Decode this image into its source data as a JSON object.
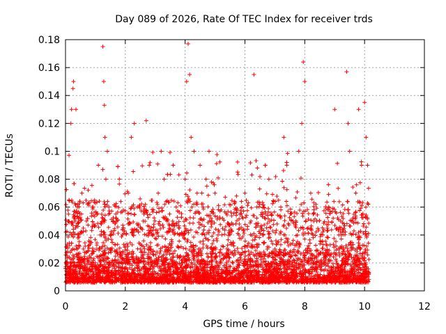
{
  "chart_data": {
    "type": "scatter",
    "title": "Day 089 of 2026, Rate Of TEC Index for receiver trds",
    "xlabel": "GPS time / hours",
    "ylabel": "ROTI / TECUs",
    "xlim": [
      0,
      12
    ],
    "ylim": [
      0,
      0.18
    ],
    "x_ticks": [
      0,
      2,
      4,
      6,
      8,
      10,
      12
    ],
    "x_tick_labels": [
      "0",
      "2",
      "4",
      "6",
      "8",
      "10",
      "12"
    ],
    "y_ticks": [
      0,
      0.02,
      0.04,
      0.06,
      0.08,
      0.1,
      0.12,
      0.14,
      0.16,
      0.18
    ],
    "y_tick_labels": [
      "0",
      "0.02",
      "0.04",
      "0.06",
      "0.08",
      "0.1",
      "0.12",
      "0.14",
      "0.16",
      "0.18"
    ],
    "grid": true,
    "legend": "none",
    "marker": "+",
    "color": "#ff0000",
    "x_data_range": [
      0,
      10.15
    ],
    "series": [
      {
        "x": [
          0.05,
          0.1,
          0.15,
          0.18,
          0.2,
          0.22,
          0.25,
          0.27,
          0.3,
          0.32,
          0.35,
          0.38,
          0.4,
          0.42,
          0.45,
          0.5,
          0.55,
          0.6,
          0.7,
          0.8,
          0.9,
          1.0,
          1.1,
          1.2,
          1.25,
          1.28,
          1.3,
          1.32,
          1.35,
          1.4,
          1.45,
          1.5,
          1.6,
          1.7,
          1.8,
          1.9,
          2.0,
          2.1,
          2.2,
          2.3,
          2.4,
          2.5,
          2.6,
          2.7,
          2.8,
          2.9,
          3.0,
          3.1,
          3.2,
          3.3,
          3.4,
          3.5,
          3.6,
          3.7,
          3.8,
          3.9,
          4.0,
          4.05,
          4.1,
          4.15,
          4.2,
          4.3,
          4.4,
          4.5,
          4.6,
          4.7,
          4.8,
          4.9,
          5.0,
          5.1,
          5.2,
          5.4,
          5.6,
          5.8,
          6.0,
          6.2,
          6.3,
          6.4,
          6.6,
          6.8,
          7.0,
          7.2,
          7.3,
          7.4,
          7.6,
          7.8,
          7.9,
          7.95,
          8.0,
          8.2,
          8.4,
          8.6,
          8.8,
          9.0,
          9.2,
          9.4,
          9.45,
          9.5,
          9.6,
          9.8,
          9.9,
          10.0,
          10.05,
          10.1
        ],
        "y": [
          0.02,
          0.055,
          0.02,
          0.12,
          0.13,
          0.04,
          0.145,
          0.15,
          0.02,
          0.05,
          0.13,
          0.03,
          0.06,
          0.025,
          0.04,
          0.02,
          0.07,
          0.03,
          0.05,
          0.025,
          0.06,
          0.02,
          0.09,
          0.04,
          0.175,
          0.15,
          0.133,
          0.11,
          0.08,
          0.1,
          0.06,
          0.03,
          0.05,
          0.02,
          0.08,
          0.04,
          0.02,
          0.07,
          0.11,
          0.12,
          0.06,
          0.03,
          0.05,
          0.122,
          0.09,
          0.04,
          0.02,
          0.07,
          0.1,
          0.08,
          0.05,
          0.03,
          0.09,
          0.06,
          0.04,
          0.02,
          0.08,
          0.15,
          0.177,
          0.155,
          0.11,
          0.1,
          0.07,
          0.09,
          0.06,
          0.08,
          0.1,
          0.05,
          0.07,
          0.04,
          0.02,
          0.03,
          0.02,
          0.04,
          0.07,
          0.05,
          0.155,
          0.06,
          0.04,
          0.08,
          0.03,
          0.06,
          0.11,
          0.09,
          0.05,
          0.1,
          0.12,
          0.164,
          0.15,
          0.07,
          0.05,
          0.04,
          0.06,
          0.13,
          0.05,
          0.157,
          0.12,
          0.1,
          0.05,
          0.13,
          0.09,
          0.135,
          0.11,
          0.09
        ]
      }
    ]
  }
}
